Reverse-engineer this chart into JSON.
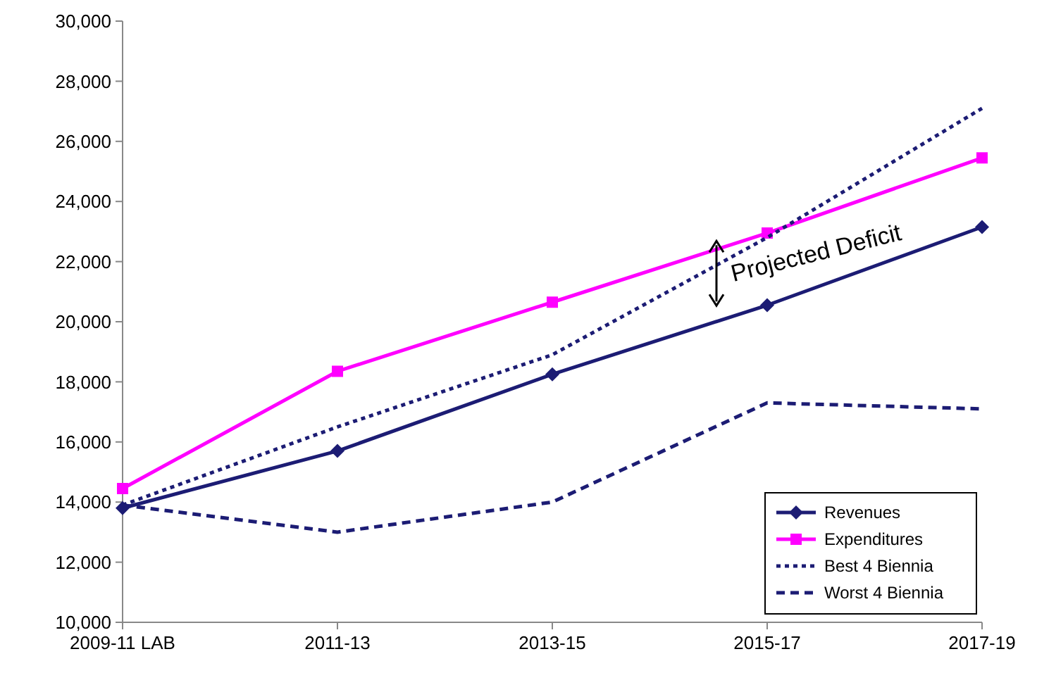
{
  "chart_data": {
    "type": "line",
    "categories": [
      "2009-11 LAB",
      "2011-13",
      "2013-15",
      "2015-17",
      "2017-19"
    ],
    "series": [
      {
        "name": "Revenues",
        "color": "#1c1c74",
        "values": [
          13800,
          15700,
          18250,
          20550,
          23150
        ],
        "marker": "diamond",
        "line_style": "solid"
      },
      {
        "name": "Expenditures",
        "color": "#ff00ff",
        "values": [
          14450,
          18350,
          20650,
          22950,
          25450
        ],
        "marker": "square",
        "line_style": "solid"
      },
      {
        "name": "Best 4 Biennia",
        "color": "#1c1c74",
        "values": [
          13900,
          16500,
          18900,
          22800,
          27100
        ],
        "marker": "none",
        "line_style": "dotted"
      },
      {
        "name": "Worst 4 Biennia",
        "color": "#1c1c74",
        "values": [
          13900,
          13000,
          14000,
          17300,
          17100
        ],
        "marker": "none",
        "line_style": "dashed"
      }
    ],
    "ylim": [
      10000,
      30000
    ],
    "yticks": [
      {
        "value": 10000,
        "label": "10,000"
      },
      {
        "value": 12000,
        "label": "12,000"
      },
      {
        "value": 14000,
        "label": "14,000"
      },
      {
        "value": 16000,
        "label": "16,000"
      },
      {
        "value": 18000,
        "label": "18,000"
      },
      {
        "value": 20000,
        "label": "20,000"
      },
      {
        "value": 22000,
        "label": "22,000"
      },
      {
        "value": 24000,
        "label": "24,000"
      },
      {
        "value": 26000,
        "label": "26,000"
      },
      {
        "value": 28000,
        "label": "28,000"
      },
      {
        "value": 30000,
        "label": "30,000"
      }
    ],
    "grid": false,
    "legend": "bottom right",
    "annotations": [
      "Projected Deficit"
    ]
  }
}
